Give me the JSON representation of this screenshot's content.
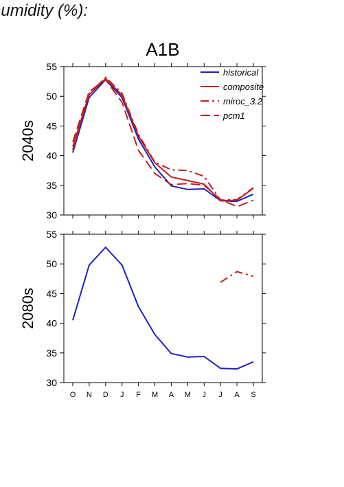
{
  "header_text": "humidity (%):",
  "chart_data": [
    {
      "type": "line",
      "title": "A1B",
      "ylabel": "2040s",
      "xlabel": "",
      "categories": [
        "O",
        "N",
        "D",
        "J",
        "F",
        "M",
        "A",
        "M",
        "J",
        "J",
        "A",
        "S"
      ],
      "ylim": [
        30,
        55
      ],
      "yticks": [
        30,
        35,
        40,
        45,
        50,
        55
      ],
      "grid": false,
      "legend_position": "top-right",
      "series": [
        {
          "name": "historical",
          "style": "solid",
          "color": "#1f1fbf",
          "values": [
            40.5,
            49.8,
            52.8,
            49.8,
            42.8,
            38.1,
            34.9,
            34.3,
            34.4,
            32.4,
            32.3,
            33.5
          ]
        },
        {
          "name": "composite",
          "style": "solid",
          "color": "#bf1f1f",
          "values": [
            41.5,
            50.3,
            53.0,
            50.2,
            43.3,
            38.8,
            36.4,
            35.8,
            35.2,
            32.4,
            32.5,
            34.5
          ]
        },
        {
          "name": "miroc_3.2",
          "style": "dashdot",
          "color": "#bf1f1f",
          "values": [
            41.0,
            50.4,
            53.2,
            50.5,
            43.6,
            38.9,
            37.6,
            37.5,
            36.5,
            32.5,
            32.6,
            34.6
          ]
        },
        {
          "name": "pcm1",
          "style": "dashed",
          "color": "#bf1f1f",
          "values": [
            42.3,
            50.8,
            52.8,
            49.0,
            40.9,
            37.0,
            35.1,
            35.3,
            35.0,
            32.6,
            31.4,
            32.5
          ]
        }
      ]
    },
    {
      "type": "line",
      "title": "",
      "ylabel": "2080s",
      "xlabel": "",
      "categories": [
        "O",
        "N",
        "D",
        "J",
        "F",
        "M",
        "A",
        "M",
        "J",
        "J",
        "A",
        "S"
      ],
      "ylim": [
        30,
        55
      ],
      "yticks": [
        30,
        35,
        40,
        45,
        50,
        55
      ],
      "grid": false,
      "series": [
        {
          "name": "historical",
          "style": "solid",
          "color": "#1f1fbf",
          "values": [
            40.5,
            49.8,
            52.8,
            49.8,
            42.8,
            38.1,
            34.9,
            34.3,
            34.4,
            32.4,
            32.3,
            33.5
          ]
        },
        {
          "name": "miroc_3.2",
          "style": "dashdot",
          "color": "#bf1f1f",
          "values": [
            null,
            null,
            null,
            null,
            null,
            null,
            null,
            null,
            null,
            46.9,
            48.7,
            47.9
          ]
        }
      ]
    }
  ]
}
